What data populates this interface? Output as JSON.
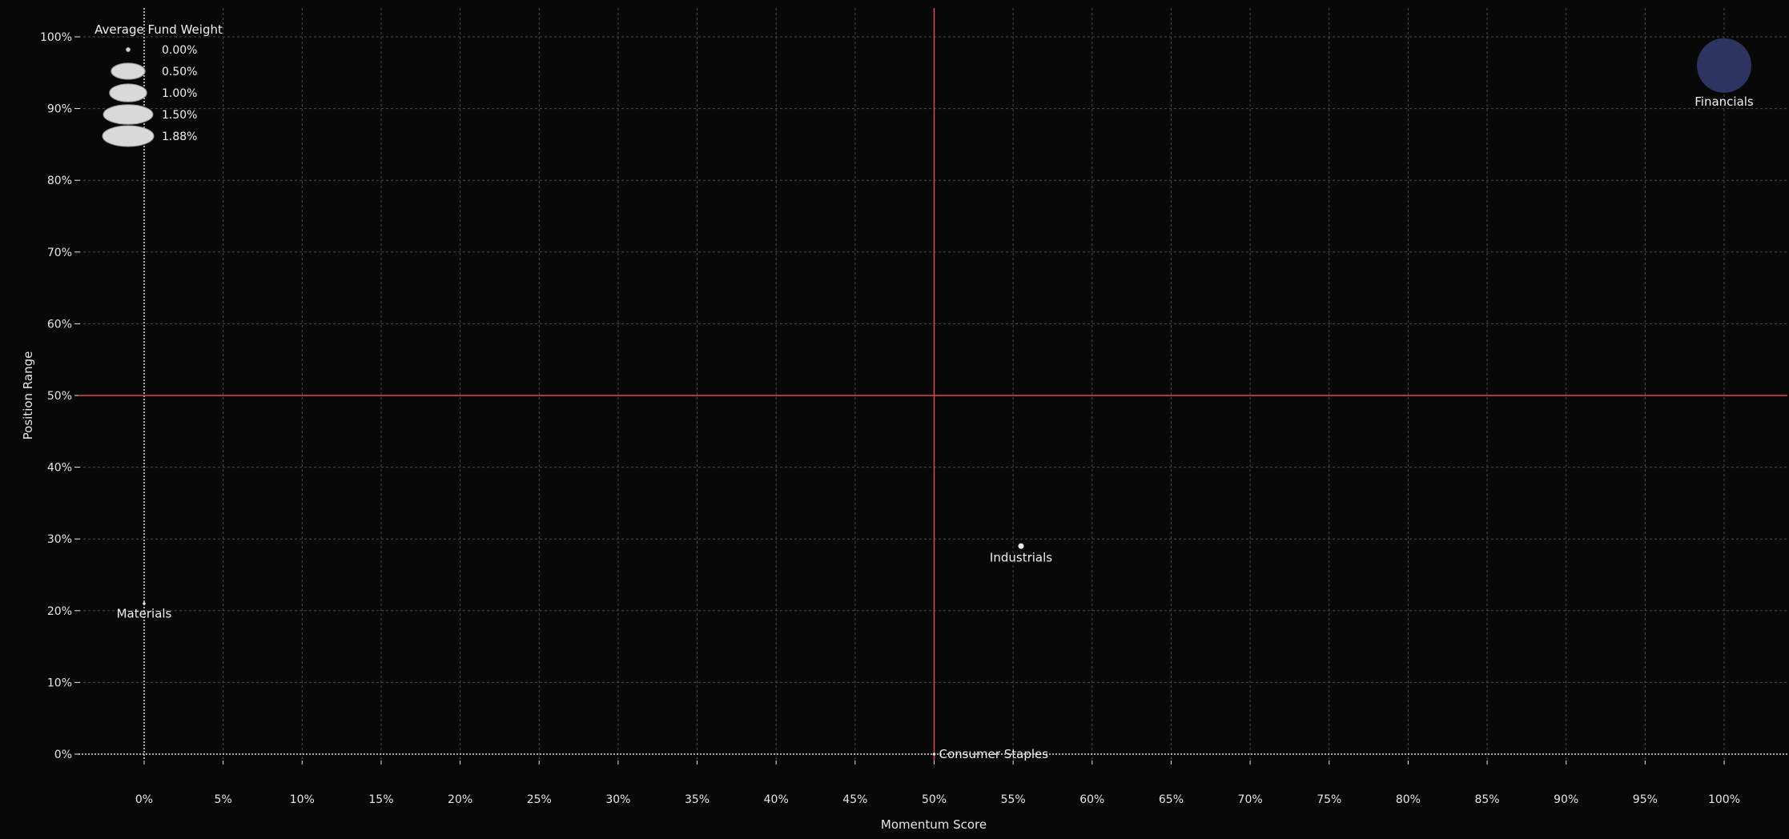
{
  "chart_data": {
    "type": "scatter",
    "title": "",
    "xlabel": "Momentum Score",
    "ylabel": "Position Range",
    "xlim": [
      -0.04,
      1.04
    ],
    "ylim": [
      -0.015,
      1.04
    ],
    "x_ticks": [
      0,
      0.05,
      0.1,
      0.15,
      0.2,
      0.25,
      0.3,
      0.35,
      0.4,
      0.45,
      0.5,
      0.55,
      0.6,
      0.65,
      0.7,
      0.75,
      0.8,
      0.85,
      0.9,
      0.95,
      1.0
    ],
    "x_tick_labels": [
      "0%",
      "5%",
      "10%",
      "15%",
      "20%",
      "25%",
      "30%",
      "35%",
      "40%",
      "45%",
      "50%",
      "55%",
      "60%",
      "65%",
      "70%",
      "75%",
      "80%",
      "85%",
      "90%",
      "95%",
      "100%"
    ],
    "y_ticks": [
      0,
      0.1,
      0.2,
      0.3,
      0.4,
      0.5,
      0.6,
      0.7,
      0.8,
      0.9,
      1.0
    ],
    "y_tick_labels": [
      "0%",
      "10%",
      "20%",
      "30%",
      "40%",
      "50%",
      "60%",
      "70%",
      "80%",
      "90%",
      "100%"
    ],
    "grid": true,
    "reference_lines": {
      "x": 0.5,
      "y": 0.5,
      "color": "#e0464e"
    },
    "zero_lines_dotted": true,
    "points": [
      {
        "label": "Financials",
        "x": 1.0,
        "y": 0.96,
        "weight": 1.88,
        "color": "#2c3561"
      },
      {
        "label": "Industrials",
        "x": 0.555,
        "y": 0.29,
        "weight": 0.02,
        "color": "#e8e8e8"
      },
      {
        "label": "Materials",
        "x": 0.0,
        "y": 0.21,
        "weight": 0.005,
        "color": "#e8e8e8"
      },
      {
        "label": "Consumer Staples",
        "x": 0.5,
        "y": 0.0,
        "weight": 0.005,
        "color": "#e8e8e8"
      }
    ],
    "size_legend": {
      "title": "Average Fund Weight",
      "placement": "top-left",
      "entries": [
        {
          "label": "0.00%",
          "weight": 0.0
        },
        {
          "label": "0.50%",
          "weight": 0.5
        },
        {
          "label": "1.00%",
          "weight": 1.0
        },
        {
          "label": "1.50%",
          "weight": 1.5
        },
        {
          "label": "1.88%",
          "weight": 1.88
        }
      ],
      "marker_color": "#d9d9d9"
    },
    "colors": {
      "background": "#080808",
      "grid": "#4a4a4a",
      "text": "#e6e6e6",
      "reference": "#e0464e"
    }
  }
}
